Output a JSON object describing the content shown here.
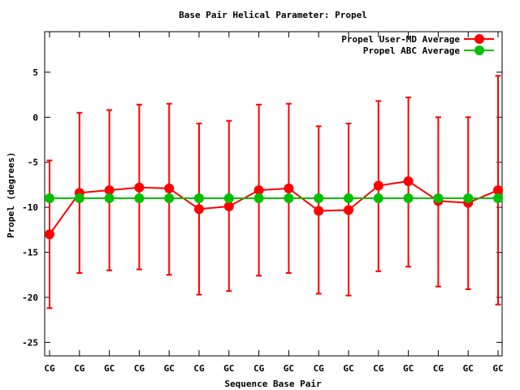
{
  "chart_data": {
    "type": "line",
    "title": "Base Pair Helical Parameter: Propel",
    "xlabel": "Sequence Base Pair",
    "ylabel": "Propel (degrees)",
    "categories": [
      "CG",
      "CG",
      "GC",
      "CG",
      "GC",
      "CG",
      "GC",
      "CG",
      "GC",
      "CG",
      "GC",
      "CG",
      "GC",
      "CG",
      "GC",
      "GC"
    ],
    "ylim": [
      -26.5,
      9.5
    ],
    "yticks": [
      -25,
      -20,
      -15,
      -10,
      -5,
      0,
      5
    ],
    "ytick_labels": [
      "-25",
      "-20",
      "-15",
      "-10",
      "-5",
      "0",
      "5"
    ],
    "grid": false,
    "legend_position": "top-right",
    "series": [
      {
        "name": "Propel User-MD Average",
        "color": "#ff0000",
        "values": [
          -13.0,
          -8.4,
          -8.1,
          -7.8,
          -7.9,
          -10.2,
          -9.9,
          -8.1,
          -7.9,
          -10.4,
          -10.3,
          -7.6,
          -7.1,
          -9.3,
          -9.5,
          -8.1
        ],
        "error_low": [
          -21.2,
          -17.3,
          -17.0,
          -16.9,
          -17.5,
          -19.7,
          -19.3,
          -17.6,
          -17.3,
          -19.6,
          -19.8,
          -17.1,
          -16.6,
          -18.8,
          -19.1,
          -20.8
        ],
        "error_high": [
          -4.8,
          0.5,
          0.8,
          1.4,
          1.5,
          -0.7,
          -0.4,
          1.4,
          1.5,
          -1.0,
          -0.7,
          1.8,
          2.2,
          0.0,
          0.0,
          4.6
        ]
      },
      {
        "name": "Propel ABC Average",
        "color": "#00c000",
        "values": [
          -9.0,
          -9.0,
          -9.0,
          -9.0,
          -9.0,
          -9.0,
          -9.0,
          -9.0,
          -9.0,
          -9.0,
          -9.0,
          -9.0,
          -9.0,
          -9.0,
          -9.0,
          -9.0
        ]
      }
    ]
  }
}
